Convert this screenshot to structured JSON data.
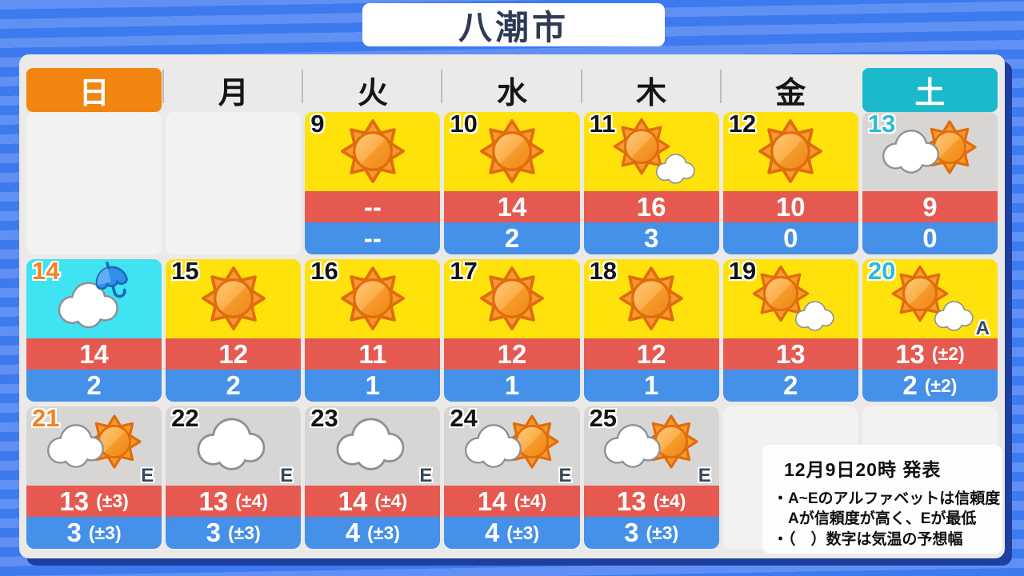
{
  "title": "八潮市",
  "issued": "12月9日20時 発表",
  "legend": {
    "line1": "・A~Eのアルファベットは信頼度",
    "line2": "　Aが信頼度が高く、Eが最低",
    "line3": "・（　）数字は気温の予想幅"
  },
  "weekdays": [
    {
      "label": "日",
      "type": "sunday"
    },
    {
      "label": "月"
    },
    {
      "label": "火"
    },
    {
      "label": "水"
    },
    {
      "label": "木"
    },
    {
      "label": "金"
    },
    {
      "label": "土",
      "type": "saturday"
    }
  ],
  "weeks": [
    [
      null,
      null,
      {
        "date": "9",
        "icon": "sun",
        "bg": "yellow",
        "high": "--",
        "low": "--"
      },
      {
        "date": "10",
        "icon": "sun",
        "bg": "yellow",
        "high": "14",
        "low": "2"
      },
      {
        "date": "11",
        "icon": "sun-cloud",
        "bg": "yellow",
        "high": "16",
        "low": "3"
      },
      {
        "date": "12",
        "icon": "sun",
        "bg": "yellow",
        "high": "10",
        "low": "0"
      },
      {
        "date": "13",
        "icon": "cloud-sun",
        "bg": "gray",
        "date_color": "cyan",
        "high": "9",
        "low": "0"
      }
    ],
    [
      {
        "date": "14",
        "icon": "rain",
        "bg": "cyan",
        "date_color": "orange",
        "high": "14",
        "low": "2"
      },
      {
        "date": "15",
        "icon": "sun",
        "bg": "yellow",
        "high": "12",
        "low": "2"
      },
      {
        "date": "16",
        "icon": "sun",
        "bg": "yellow",
        "high": "11",
        "low": "1"
      },
      {
        "date": "17",
        "icon": "sun",
        "bg": "yellow",
        "high": "12",
        "low": "1"
      },
      {
        "date": "18",
        "icon": "sun",
        "bg": "yellow",
        "high": "12",
        "low": "1"
      },
      {
        "date": "19",
        "icon": "sun-cloud",
        "bg": "yellow",
        "high": "13",
        "low": "2"
      },
      {
        "date": "20",
        "icon": "sun-cloud",
        "bg": "yellow",
        "date_color": "cyan",
        "reliability": "A",
        "high": "13",
        "high_range": "(±2)",
        "low": "2",
        "low_range": "(±2)"
      }
    ],
    [
      {
        "date": "21",
        "icon": "cloud-sun",
        "bg": "gray",
        "date_color": "orange",
        "reliability": "E",
        "high": "13",
        "high_range": "(±3)",
        "low": "3",
        "low_range": "(±3)"
      },
      {
        "date": "22",
        "icon": "cloud",
        "bg": "gray",
        "reliability": "E",
        "high": "13",
        "high_range": "(±4)",
        "low": "3",
        "low_range": "(±3)"
      },
      {
        "date": "23",
        "icon": "cloud",
        "bg": "gray",
        "reliability": "E",
        "high": "14",
        "high_range": "(±4)",
        "low": "4",
        "low_range": "(±3)"
      },
      {
        "date": "24",
        "icon": "cloud-sun",
        "bg": "gray",
        "reliability": "E",
        "high": "14",
        "high_range": "(±4)",
        "low": "4",
        "low_range": "(±3)"
      },
      {
        "date": "25",
        "icon": "cloud-sun",
        "bg": "gray",
        "reliability": "E",
        "high": "13",
        "high_range": "(±4)",
        "low": "3",
        "low_range": "(±3)"
      },
      null,
      null
    ]
  ],
  "colors": {
    "background_stripe_light": "#6090f3",
    "background_stripe_dark": "#3d7af0",
    "panel": "#ebeae8",
    "panel_shadow": "#1d3f9f",
    "sunday_header": "#f28410",
    "saturday_header": "#1cb9cd",
    "sunny_cell": "#ffe20b",
    "cloudy_cell": "#d8d6d4",
    "rain_cell": "#3fe3f2",
    "empty_cell": "#f3f2f0",
    "high_temp_band": "#e65951",
    "low_temp_band": "#4590e8",
    "date_orange": "#f28222",
    "date_cyan": "#29bcd4",
    "title_text": "#2d3b55"
  }
}
